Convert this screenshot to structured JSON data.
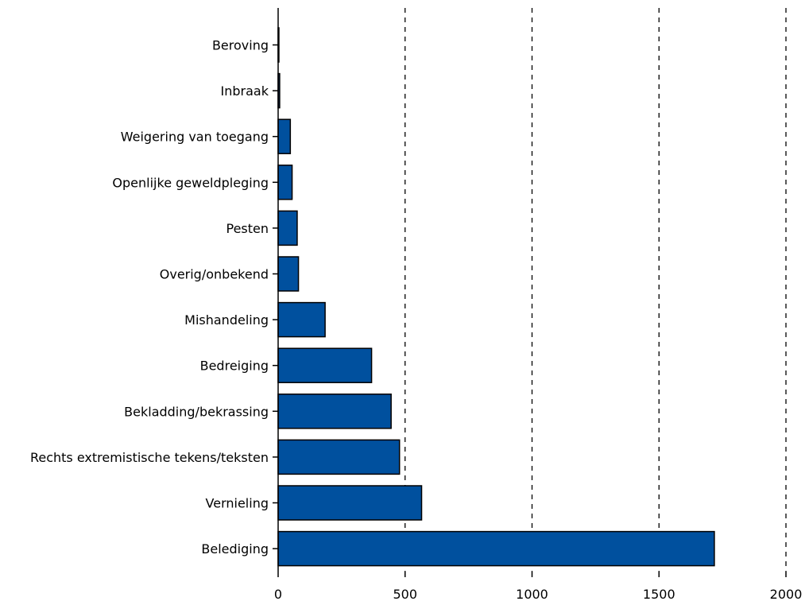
{
  "chart_data": {
    "type": "bar",
    "orientation": "horizontal",
    "categories": [
      "Beroving",
      "Inbraak",
      "Weigering van toegang",
      "Openlijke geweldpleging",
      "Pesten",
      "Overig/onbekend",
      "Mishandeling",
      "Bedreiging",
      "Bekladding/bekrassing",
      "Rechts extremistische tekens/teksten",
      "Vernieling",
      "Belediging"
    ],
    "values": [
      3,
      6,
      48,
      55,
      75,
      80,
      185,
      368,
      445,
      478,
      565,
      1718
    ],
    "xlim": [
      0,
      2050
    ],
    "xticks": [
      0,
      500,
      1000,
      1500,
      2000
    ],
    "xtick_labels": [
      "0",
      "500",
      "1000",
      "1500",
      "2000"
    ],
    "grid": "vertical dashed at x ticks",
    "bar_color": "#00509e",
    "title": "",
    "xlabel": "",
    "ylabel": ""
  }
}
